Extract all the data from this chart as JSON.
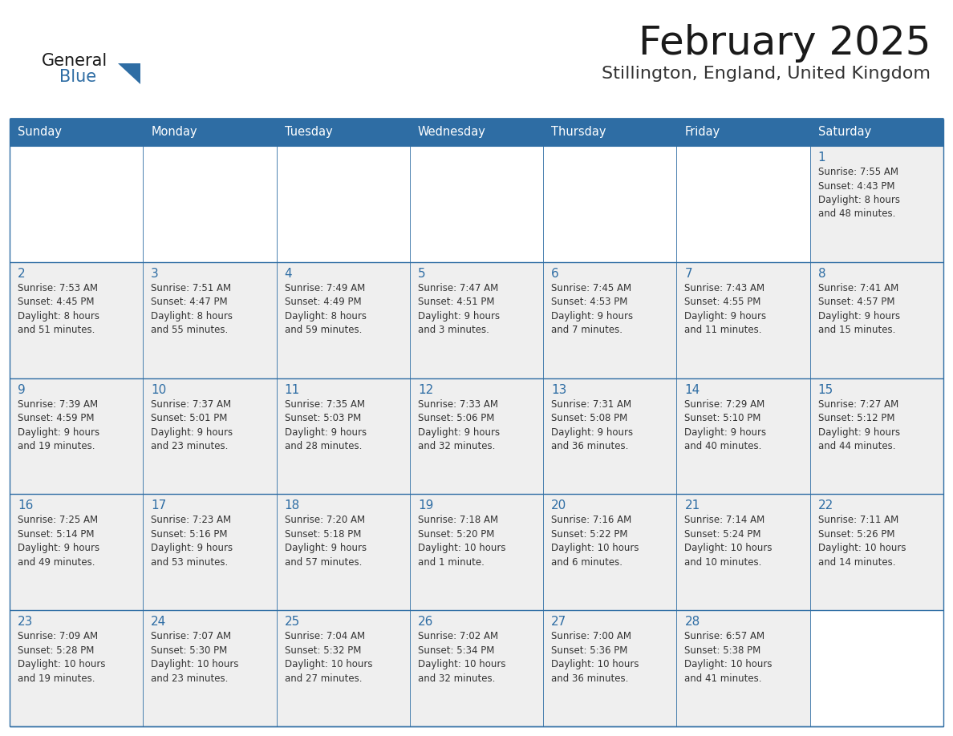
{
  "title": "February 2025",
  "subtitle": "Stillington, England, United Kingdom",
  "header_color": "#2E6DA4",
  "header_text_color": "#FFFFFF",
  "cell_bg_color": "#EFEFEF",
  "cell_bg_empty": "#FFFFFF",
  "border_color": "#2E6DA4",
  "title_color": "#1a1a1a",
  "subtitle_color": "#333333",
  "day_number_color": "#2E6DA4",
  "cell_text_color": "#333333",
  "days_of_week": [
    "Sunday",
    "Monday",
    "Tuesday",
    "Wednesday",
    "Thursday",
    "Friday",
    "Saturday"
  ],
  "weeks": [
    [
      {
        "day": null,
        "info": null
      },
      {
        "day": null,
        "info": null
      },
      {
        "day": null,
        "info": null
      },
      {
        "day": null,
        "info": null
      },
      {
        "day": null,
        "info": null
      },
      {
        "day": null,
        "info": null
      },
      {
        "day": 1,
        "info": "Sunrise: 7:55 AM\nSunset: 4:43 PM\nDaylight: 8 hours\nand 48 minutes."
      }
    ],
    [
      {
        "day": 2,
        "info": "Sunrise: 7:53 AM\nSunset: 4:45 PM\nDaylight: 8 hours\nand 51 minutes."
      },
      {
        "day": 3,
        "info": "Sunrise: 7:51 AM\nSunset: 4:47 PM\nDaylight: 8 hours\nand 55 minutes."
      },
      {
        "day": 4,
        "info": "Sunrise: 7:49 AM\nSunset: 4:49 PM\nDaylight: 8 hours\nand 59 minutes."
      },
      {
        "day": 5,
        "info": "Sunrise: 7:47 AM\nSunset: 4:51 PM\nDaylight: 9 hours\nand 3 minutes."
      },
      {
        "day": 6,
        "info": "Sunrise: 7:45 AM\nSunset: 4:53 PM\nDaylight: 9 hours\nand 7 minutes."
      },
      {
        "day": 7,
        "info": "Sunrise: 7:43 AM\nSunset: 4:55 PM\nDaylight: 9 hours\nand 11 minutes."
      },
      {
        "day": 8,
        "info": "Sunrise: 7:41 AM\nSunset: 4:57 PM\nDaylight: 9 hours\nand 15 minutes."
      }
    ],
    [
      {
        "day": 9,
        "info": "Sunrise: 7:39 AM\nSunset: 4:59 PM\nDaylight: 9 hours\nand 19 minutes."
      },
      {
        "day": 10,
        "info": "Sunrise: 7:37 AM\nSunset: 5:01 PM\nDaylight: 9 hours\nand 23 minutes."
      },
      {
        "day": 11,
        "info": "Sunrise: 7:35 AM\nSunset: 5:03 PM\nDaylight: 9 hours\nand 28 minutes."
      },
      {
        "day": 12,
        "info": "Sunrise: 7:33 AM\nSunset: 5:06 PM\nDaylight: 9 hours\nand 32 minutes."
      },
      {
        "day": 13,
        "info": "Sunrise: 7:31 AM\nSunset: 5:08 PM\nDaylight: 9 hours\nand 36 minutes."
      },
      {
        "day": 14,
        "info": "Sunrise: 7:29 AM\nSunset: 5:10 PM\nDaylight: 9 hours\nand 40 minutes."
      },
      {
        "day": 15,
        "info": "Sunrise: 7:27 AM\nSunset: 5:12 PM\nDaylight: 9 hours\nand 44 minutes."
      }
    ],
    [
      {
        "day": 16,
        "info": "Sunrise: 7:25 AM\nSunset: 5:14 PM\nDaylight: 9 hours\nand 49 minutes."
      },
      {
        "day": 17,
        "info": "Sunrise: 7:23 AM\nSunset: 5:16 PM\nDaylight: 9 hours\nand 53 minutes."
      },
      {
        "day": 18,
        "info": "Sunrise: 7:20 AM\nSunset: 5:18 PM\nDaylight: 9 hours\nand 57 minutes."
      },
      {
        "day": 19,
        "info": "Sunrise: 7:18 AM\nSunset: 5:20 PM\nDaylight: 10 hours\nand 1 minute."
      },
      {
        "day": 20,
        "info": "Sunrise: 7:16 AM\nSunset: 5:22 PM\nDaylight: 10 hours\nand 6 minutes."
      },
      {
        "day": 21,
        "info": "Sunrise: 7:14 AM\nSunset: 5:24 PM\nDaylight: 10 hours\nand 10 minutes."
      },
      {
        "day": 22,
        "info": "Sunrise: 7:11 AM\nSunset: 5:26 PM\nDaylight: 10 hours\nand 14 minutes."
      }
    ],
    [
      {
        "day": 23,
        "info": "Sunrise: 7:09 AM\nSunset: 5:28 PM\nDaylight: 10 hours\nand 19 minutes."
      },
      {
        "day": 24,
        "info": "Sunrise: 7:07 AM\nSunset: 5:30 PM\nDaylight: 10 hours\nand 23 minutes."
      },
      {
        "day": 25,
        "info": "Sunrise: 7:04 AM\nSunset: 5:32 PM\nDaylight: 10 hours\nand 27 minutes."
      },
      {
        "day": 26,
        "info": "Sunrise: 7:02 AM\nSunset: 5:34 PM\nDaylight: 10 hours\nand 32 minutes."
      },
      {
        "day": 27,
        "info": "Sunrise: 7:00 AM\nSunset: 5:36 PM\nDaylight: 10 hours\nand 36 minutes."
      },
      {
        "day": 28,
        "info": "Sunrise: 6:57 AM\nSunset: 5:38 PM\nDaylight: 10 hours\nand 41 minutes."
      },
      {
        "day": null,
        "info": null
      }
    ]
  ],
  "logo_general_color": "#1a1a1a",
  "logo_blue_color": "#2E6DA4"
}
